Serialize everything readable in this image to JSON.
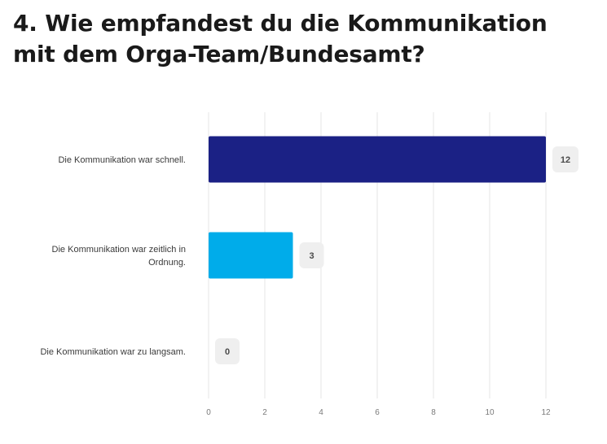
{
  "title": "4. Wie empfandest du die Kommunikation mit dem Orga-Team/Bundesamt?",
  "chart_data": {
    "type": "bar",
    "orientation": "horizontal",
    "categories": [
      [
        "Die Kommunikation war schnell."
      ],
      [
        "Die Kommunikation war zeitlich in",
        "Ordnung."
      ],
      [
        "Die Kommunikation war zu langsam."
      ]
    ],
    "values": [
      12,
      3,
      0
    ],
    "colors": [
      "#1b2185",
      "#00acea",
      "#00acea"
    ],
    "xlim": [
      0,
      12
    ],
    "xticks": [
      0,
      2,
      4,
      6,
      8,
      10,
      12
    ],
    "grid": true,
    "data_labels": true
  }
}
